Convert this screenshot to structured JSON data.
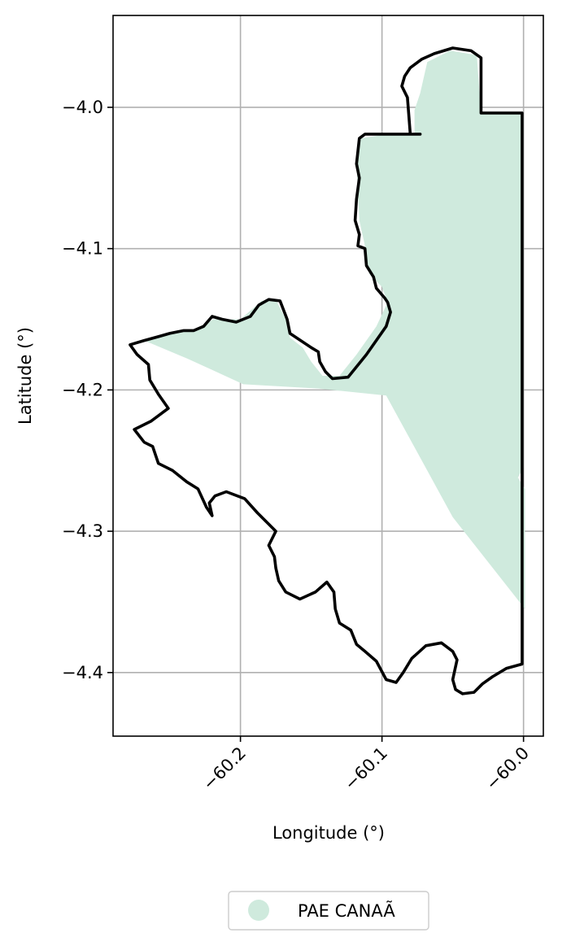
{
  "chart_data": {
    "type": "map",
    "xlabel": "Longitude (°)",
    "ylabel": "Latitude (°)",
    "xlim": [
      -60.29,
      -59.986
    ],
    "ylim": [
      -4.445,
      -3.935
    ],
    "x_ticks": [
      -60.2,
      -60.1,
      -60.0
    ],
    "x_tick_labels": [
      "−60.2",
      "−60.1",
      "−60.0"
    ],
    "y_ticks": [
      -4.0,
      -4.1,
      -4.2,
      -4.3,
      -4.4
    ],
    "y_tick_labels": [
      "−4.0",
      "−4.1",
      "−4.2",
      "−4.3",
      "−4.4"
    ],
    "grid": true,
    "legend_position": "bottom-center",
    "layers": [
      {
        "name": "PAE CANAÃ",
        "kind": "filled-area",
        "color": "#cfeadd",
        "coordinates": [
          [
            -60.268,
            -4.165
          ],
          [
            -60.252,
            -4.16
          ],
          [
            -60.233,
            -4.158
          ],
          [
            -60.219,
            -4.15
          ],
          [
            -60.2,
            -4.15
          ],
          [
            -60.185,
            -4.137
          ],
          [
            -60.175,
            -4.136
          ],
          [
            -60.168,
            -4.15
          ],
          [
            -60.165,
            -4.163
          ],
          [
            -60.156,
            -4.17
          ],
          [
            -60.15,
            -4.18
          ],
          [
            -60.142,
            -4.19
          ],
          [
            -60.13,
            -4.19
          ],
          [
            -60.118,
            -4.175
          ],
          [
            -60.104,
            -4.155
          ],
          [
            -60.096,
            -4.138
          ],
          [
            -60.1,
            -4.127
          ],
          [
            -60.109,
            -4.118
          ],
          [
            -60.112,
            -4.098
          ],
          [
            -60.116,
            -4.08
          ],
          [
            -60.118,
            -4.04
          ],
          [
            -60.116,
            -4.022
          ],
          [
            -60.095,
            -4.019
          ],
          [
            -60.077,
            -4.019
          ],
          [
            -60.077,
            -4.002
          ],
          [
            -60.073,
            -3.99
          ],
          [
            -60.068,
            -3.968
          ],
          [
            -60.052,
            -3.96
          ],
          [
            -60.033,
            -3.963
          ],
          [
            -60.03,
            -4.005
          ],
          [
            -60.0,
            -4.005
          ],
          [
            -60.0,
            -4.255
          ],
          [
            -60.004,
            -4.262
          ],
          [
            -59.999,
            -4.27
          ],
          [
            -59.999,
            -4.355
          ],
          [
            -60.05,
            -4.29
          ],
          [
            -60.097,
            -4.204
          ],
          [
            -60.145,
            -4.199
          ],
          [
            -60.198,
            -4.196
          ],
          [
            -60.237,
            -4.178
          ],
          [
            -60.268,
            -4.165
          ]
        ]
      },
      {
        "name": "municipal-boundary",
        "kind": "outline",
        "color": "#000000",
        "coordinates": [
          [
            -60.073,
            -4.019
          ],
          [
            -60.112,
            -4.019
          ],
          [
            -60.116,
            -4.022
          ],
          [
            -60.118,
            -4.04
          ],
          [
            -60.116,
            -4.05
          ],
          [
            -60.118,
            -4.065
          ],
          [
            -60.119,
            -4.08
          ],
          [
            -60.116,
            -4.09
          ],
          [
            -60.117,
            -4.098
          ],
          [
            -60.112,
            -4.1
          ],
          [
            -60.111,
            -4.112
          ],
          [
            -60.106,
            -4.12
          ],
          [
            -60.104,
            -4.128
          ],
          [
            -60.098,
            -4.135
          ],
          [
            -60.096,
            -4.138
          ],
          [
            -60.094,
            -4.145
          ],
          [
            -60.097,
            -4.155
          ],
          [
            -60.111,
            -4.175
          ],
          [
            -60.124,
            -4.191
          ],
          [
            -60.135,
            -4.192
          ],
          [
            -60.14,
            -4.187
          ],
          [
            -60.144,
            -4.18
          ],
          [
            -60.145,
            -4.173
          ],
          [
            -60.15,
            -4.17
          ],
          [
            -60.165,
            -4.16
          ],
          [
            -60.167,
            -4.15
          ],
          [
            -60.172,
            -4.137
          ],
          [
            -60.18,
            -4.136
          ],
          [
            -60.187,
            -4.14
          ],
          [
            -60.193,
            -4.148
          ],
          [
            -60.203,
            -4.152
          ],
          [
            -60.213,
            -4.15
          ],
          [
            -60.22,
            -4.148
          ],
          [
            -60.226,
            -4.155
          ],
          [
            -60.233,
            -4.158
          ],
          [
            -60.24,
            -4.158
          ],
          [
            -60.25,
            -4.16
          ],
          [
            -60.257,
            -4.162
          ],
          [
            -60.268,
            -4.165
          ],
          [
            -60.278,
            -4.168
          ],
          [
            -60.273,
            -4.175
          ],
          [
            -60.265,
            -4.182
          ],
          [
            -60.264,
            -4.193
          ],
          [
            -60.258,
            -4.203
          ],
          [
            -60.251,
            -4.213
          ],
          [
            -60.263,
            -4.222
          ],
          [
            -60.275,
            -4.228
          ],
          [
            -60.268,
            -4.237
          ],
          [
            -60.262,
            -4.24
          ],
          [
            -60.258,
            -4.252
          ],
          [
            -60.248,
            -4.257
          ],
          [
            -60.238,
            -4.265
          ],
          [
            -60.23,
            -4.27
          ],
          [
            -60.224,
            -4.283
          ],
          [
            -60.22,
            -4.289
          ],
          [
            -60.222,
            -4.28
          ],
          [
            -60.218,
            -4.275
          ],
          [
            -60.21,
            -4.272
          ],
          [
            -60.197,
            -4.277
          ],
          [
            -60.188,
            -4.287
          ],
          [
            -60.18,
            -4.295
          ],
          [
            -60.175,
            -4.3
          ],
          [
            -60.18,
            -4.31
          ],
          [
            -60.176,
            -4.318
          ],
          [
            -60.175,
            -4.326
          ],
          [
            -60.173,
            -4.335
          ],
          [
            -60.168,
            -4.343
          ],
          [
            -60.158,
            -4.348
          ],
          [
            -60.147,
            -4.343
          ],
          [
            -60.139,
            -4.336
          ],
          [
            -60.134,
            -4.343
          ],
          [
            -60.133,
            -4.355
          ],
          [
            -60.13,
            -4.365
          ],
          [
            -60.122,
            -4.37
          ],
          [
            -60.118,
            -4.38
          ],
          [
            -60.112,
            -4.385
          ],
          [
            -60.104,
            -4.392
          ],
          [
            -60.097,
            -4.405
          ],
          [
            -60.09,
            -4.407
          ],
          [
            -60.085,
            -4.4
          ],
          [
            -60.079,
            -4.39
          ],
          [
            -60.069,
            -4.381
          ],
          [
            -60.058,
            -4.379
          ],
          [
            -60.05,
            -4.385
          ],
          [
            -60.047,
            -4.391
          ],
          [
            -60.05,
            -4.405
          ],
          [
            -60.048,
            -4.412
          ],
          [
            -60.043,
            -4.415
          ],
          [
            -60.035,
            -4.414
          ],
          [
            -60.029,
            -4.408
          ],
          [
            -60.022,
            -4.403
          ],
          [
            -60.012,
            -4.397
          ],
          [
            -60.001,
            -4.394
          ],
          [
            -60.001,
            -4.004
          ],
          [
            -60.03,
            -4.004
          ],
          [
            -60.03,
            -3.965
          ],
          [
            -60.037,
            -3.96
          ],
          [
            -60.05,
            -3.958
          ],
          [
            -60.063,
            -3.962
          ],
          [
            -60.072,
            -3.966
          ],
          [
            -60.08,
            -3.972
          ],
          [
            -60.084,
            -3.978
          ],
          [
            -60.086,
            -3.985
          ],
          [
            -60.082,
            -3.993
          ],
          [
            -60.08,
            -4.019
          ]
        ]
      }
    ],
    "legend": [
      {
        "label": "PAE CANAÃ",
        "color": "#cfeadd",
        "marker": "circle"
      }
    ]
  }
}
